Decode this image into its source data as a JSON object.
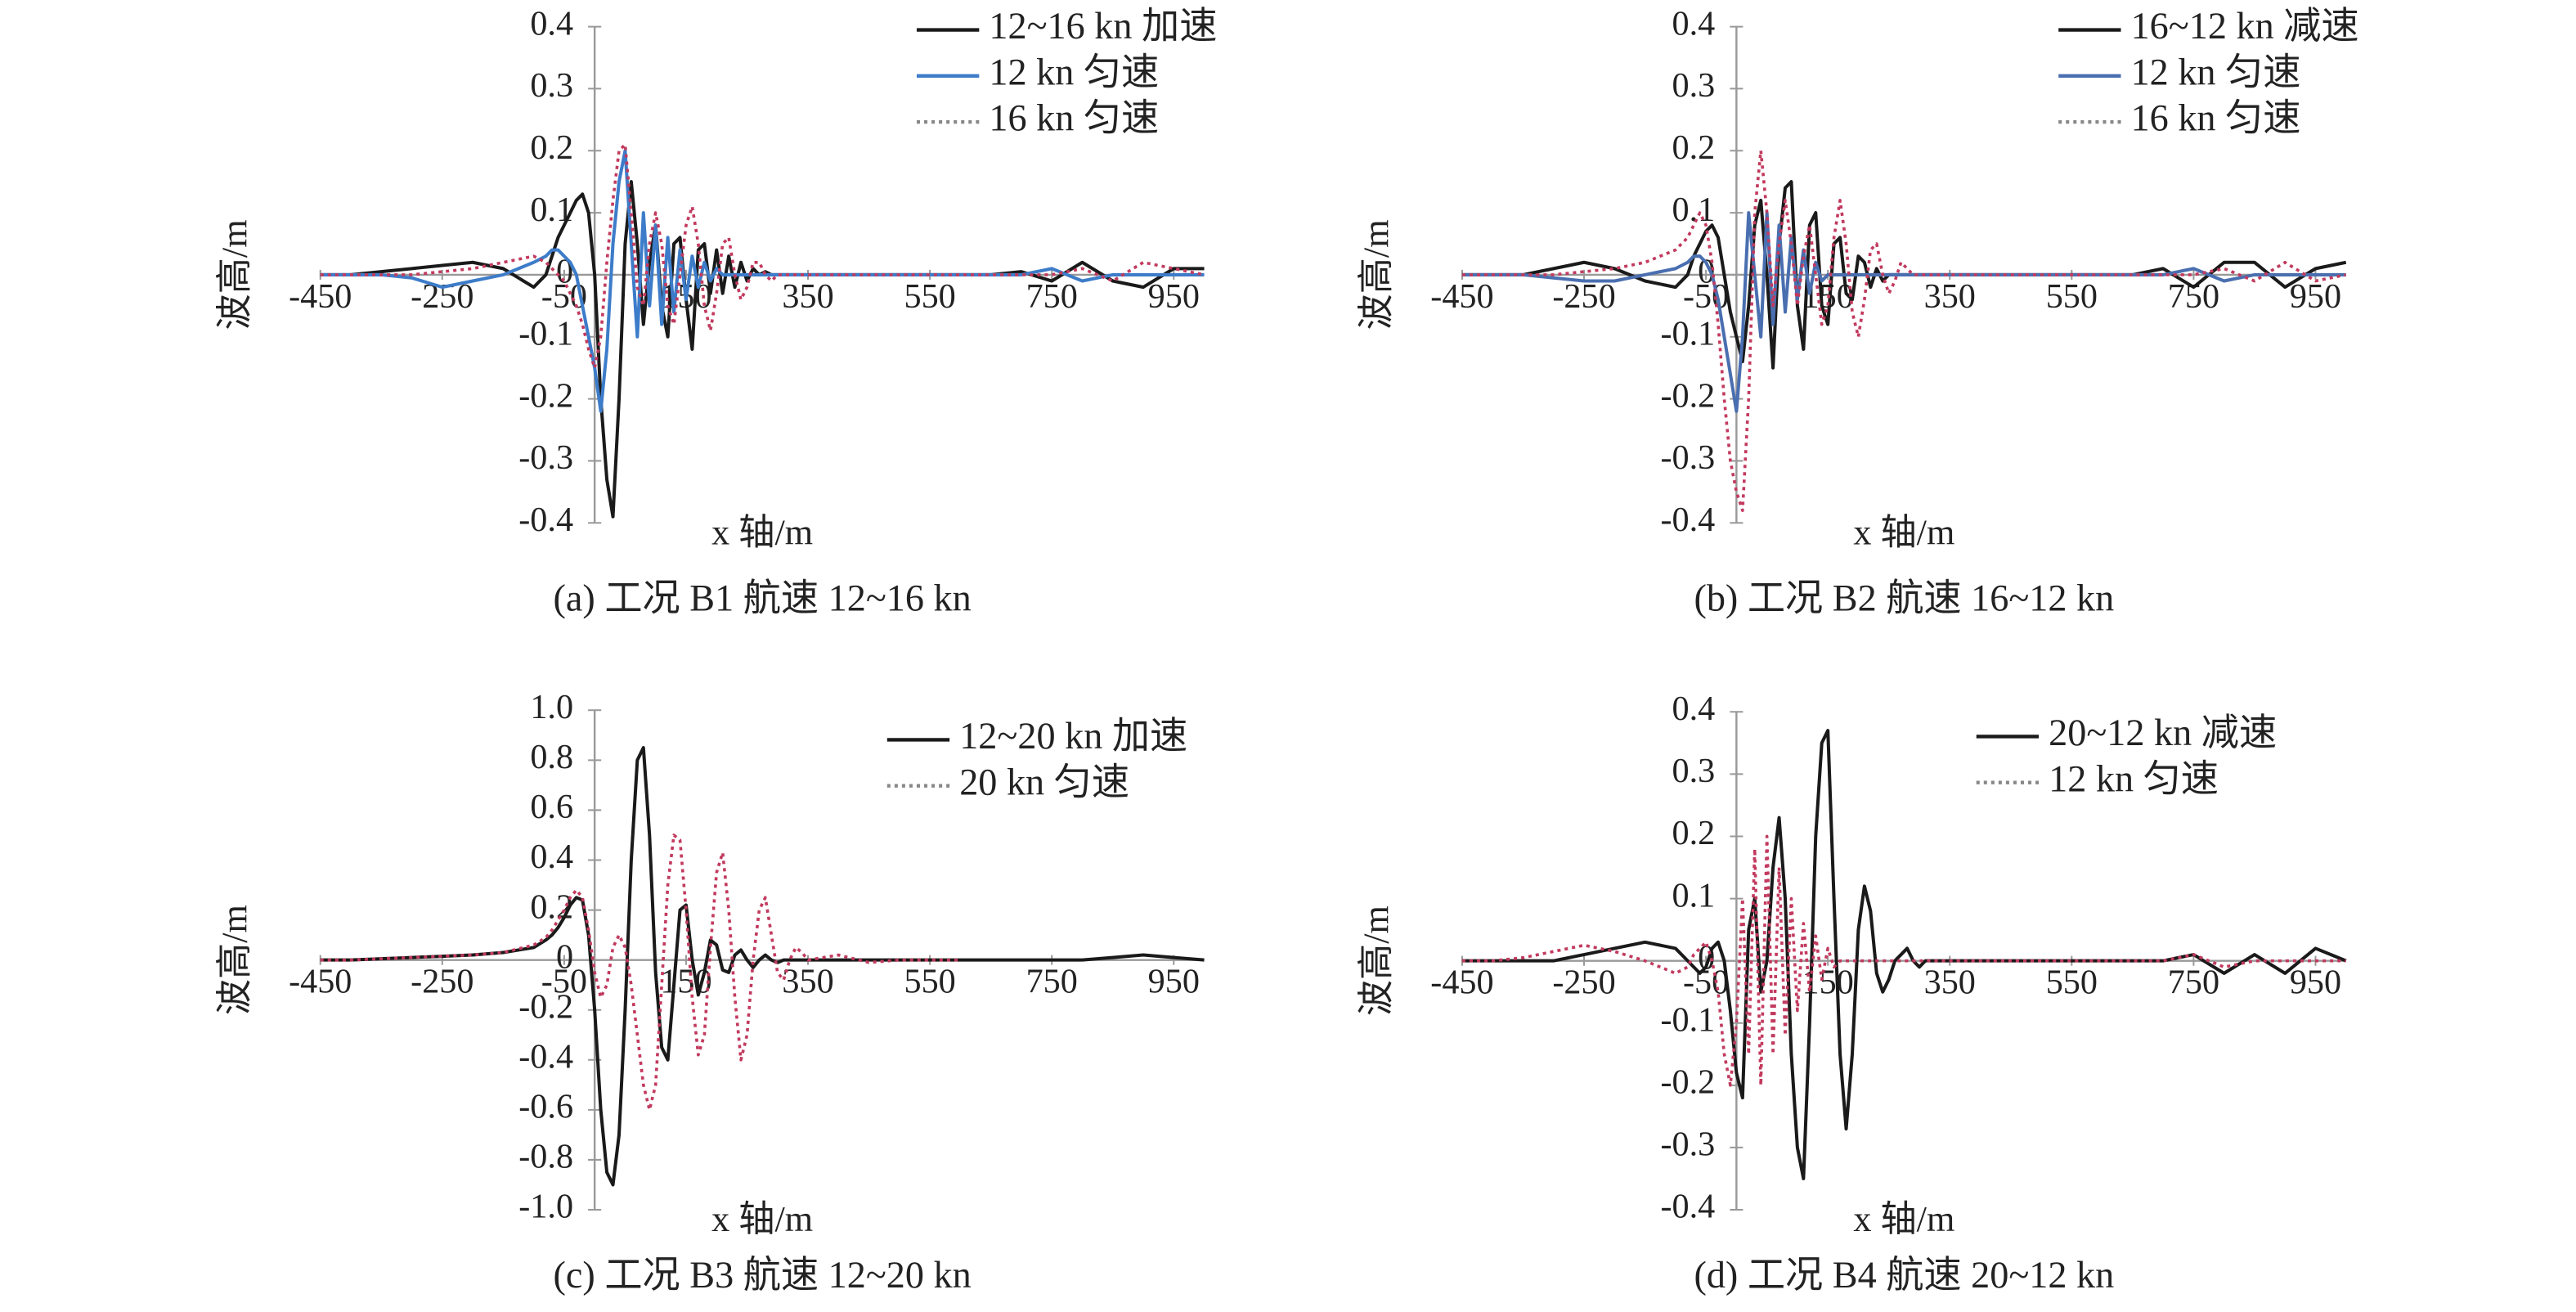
{
  "chart_data": [
    {
      "type": "line",
      "title": "(a) 工况 B1 航速 12~16 kn",
      "xlabel": "x 轴/m",
      "ylabel": "波高/m",
      "legend": "upper right",
      "xlim": [
        -450,
        1000
      ],
      "ylim": [
        -0.4,
        0.4
      ],
      "xticks": [
        -450,
        -250,
        -50,
        150,
        350,
        550,
        750,
        950
      ],
      "yticks": [
        0.4,
        0.3,
        0.2,
        0.1,
        0,
        -0.1,
        -0.2,
        -0.3,
        -0.4
      ],
      "x": [
        -450,
        -400,
        -350,
        -300,
        -250,
        -200,
        -150,
        -100,
        -80,
        -70,
        -60,
        -50,
        -40,
        -30,
        -20,
        -10,
        0,
        10,
        20,
        30,
        40,
        50,
        60,
        70,
        80,
        90,
        100,
        110,
        120,
        130,
        140,
        150,
        160,
        170,
        180,
        190,
        200,
        210,
        220,
        230,
        240,
        250,
        260,
        270,
        280,
        290,
        300,
        310,
        320,
        330,
        340,
        350,
        400,
        450,
        500,
        550,
        600,
        650,
        700,
        750,
        800,
        850,
        900,
        950,
        1000
      ],
      "series": [
        {
          "name": "12~16 kn 加速",
          "color": "#1a1a1a",
          "linestyle": "solid",
          "values": [
            0,
            0,
            0.005,
            0.01,
            0.015,
            0.02,
            0.01,
            -0.02,
            0,
            0.03,
            0.06,
            0.08,
            0.1,
            0.12,
            0.13,
            0.1,
            0,
            -0.2,
            -0.33,
            -0.39,
            -0.2,
            0.05,
            0.15,
            0.05,
            -0.08,
            0.02,
            0.08,
            -0.05,
            -0.1,
            0.05,
            0.06,
            -0.04,
            -0.12,
            0.04,
            0.05,
            -0.03,
            0.04,
            -0.03,
            0.03,
            -0.02,
            0.02,
            -0.01,
            0.01,
            0,
            0.005,
            0,
            0,
            0,
            0,
            0,
            0,
            0,
            0,
            0,
            0,
            0,
            0,
            0,
            0.005,
            -0.01,
            0.02,
            -0.01,
            -0.02,
            0.01,
            0.01
          ]
        },
        {
          "name": "12 kn 匀速",
          "color": "#3d7cc9",
          "linestyle": "solid",
          "values": [
            0,
            0,
            0,
            -0.005,
            -0.02,
            -0.01,
            0,
            0.02,
            0.03,
            0.04,
            0.04,
            0.03,
            0.02,
            0,
            -0.05,
            -0.1,
            -0.15,
            -0.22,
            -0.12,
            0.05,
            0.15,
            0.2,
            0.05,
            -0.1,
            0.1,
            -0.05,
            0.08,
            -0.08,
            0.06,
            -0.06,
            0.04,
            -0.04,
            0.03,
            -0.02,
            0.02,
            -0.01,
            0.01,
            0,
            0,
            0,
            0,
            0,
            0,
            0,
            0,
            0,
            0,
            0,
            0,
            0,
            0,
            0,
            0,
            0,
            0,
            0,
            0,
            0,
            0,
            0.01,
            -0.01,
            0,
            0,
            0,
            0
          ]
        },
        {
          "name": "16 kn 匀速",
          "color": "#c23a5e",
          "linestyle": "dotted",
          "values": [
            0,
            0,
            0,
            0,
            0.005,
            0.01,
            0.02,
            0.03,
            0.02,
            0.01,
            0,
            -0.01,
            -0.03,
            -0.05,
            -0.08,
            -0.12,
            -0.15,
            -0.1,
            0.02,
            0.12,
            0.2,
            0.21,
            0.1,
            -0.02,
            -0.05,
            0.05,
            0.1,
            0.05,
            -0.05,
            -0.08,
            0,
            0.08,
            0.11,
            0.05,
            -0.05,
            -0.09,
            -0.03,
            0.05,
            0.06,
            0,
            -0.04,
            -0.02,
            0.02,
            0.02,
            0,
            -0.01,
            0,
            0,
            0,
            0,
            0,
            0,
            0,
            0,
            0,
            0,
            0,
            0,
            0,
            0,
            0.01,
            -0.01,
            0.02,
            0.01,
            0
          ]
        }
      ]
    },
    {
      "type": "line",
      "title": "(b) 工况 B2 航速 16~12 kn",
      "xlabel": "x 轴/m",
      "ylabel": "波高/m",
      "legend": "upper right",
      "xlim": [
        -450,
        1000
      ],
      "ylim": [
        -0.4,
        0.4
      ],
      "xticks": [
        -450,
        -250,
        -50,
        150,
        350,
        550,
        750,
        950
      ],
      "yticks": [
        0.4,
        0.3,
        0.2,
        0.1,
        0,
        -0.1,
        -0.2,
        -0.3,
        -0.4
      ],
      "x": [
        -450,
        -400,
        -350,
        -300,
        -250,
        -200,
        -150,
        -100,
        -80,
        -70,
        -60,
        -50,
        -40,
        -30,
        -20,
        -10,
        0,
        10,
        20,
        30,
        40,
        50,
        60,
        70,
        80,
        90,
        100,
        110,
        120,
        130,
        140,
        150,
        160,
        170,
        180,
        190,
        200,
        210,
        220,
        230,
        240,
        250,
        260,
        270,
        280,
        290,
        300,
        310,
        320,
        330,
        340,
        350,
        400,
        450,
        500,
        550,
        600,
        650,
        700,
        750,
        800,
        850,
        900,
        950,
        1000
      ],
      "series": [
        {
          "name": "16~12 kn 减速",
          "color": "#1a1a1a",
          "linestyle": "solid",
          "values": [
            0,
            0,
            0,
            0.01,
            0.02,
            0.01,
            -0.01,
            -0.02,
            0,
            0.03,
            0.05,
            0.07,
            0.08,
            0.06,
            0,
            -0.06,
            -0.1,
            -0.14,
            -0.05,
            0.08,
            0.12,
            0,
            -0.15,
            0.05,
            0.14,
            0.15,
            -0.05,
            -0.12,
            0.08,
            0.1,
            -0.05,
            -0.08,
            0.05,
            0.06,
            -0.03,
            -0.04,
            0.03,
            0.02,
            -0.02,
            0.01,
            -0.01,
            0,
            0,
            0,
            0,
            0,
            0,
            0,
            0,
            0,
            0,
            0,
            0,
            0,
            0,
            0,
            0,
            0,
            0.01,
            -0.02,
            0.02,
            0.02,
            -0.02,
            0.01,
            0.02
          ]
        },
        {
          "name": "12 kn 匀速",
          "color": "#4a6fb0",
          "linestyle": "solid",
          "values": [
            0,
            0,
            0,
            -0.005,
            -0.01,
            -0.01,
            0,
            0.01,
            0.02,
            0.03,
            0.03,
            0.02,
            0,
            -0.04,
            -0.1,
            -0.16,
            -0.22,
            -0.1,
            0.1,
            0,
            -0.1,
            0.1,
            -0.08,
            0.08,
            -0.06,
            0.06,
            -0.04,
            0.04,
            -0.03,
            0.02,
            -0.01,
            0,
            0,
            0,
            0,
            0,
            0,
            0,
            0,
            0,
            0,
            0,
            0,
            0,
            0,
            0,
            0,
            0,
            0,
            0,
            0,
            0,
            0,
            0,
            0,
            0,
            0,
            0,
            0,
            0.01,
            -0.01,
            0,
            0,
            0,
            0
          ]
        },
        {
          "name": "16 kn 匀速",
          "color": "#c23a5e",
          "linestyle": "dotted",
          "values": [
            0,
            0,
            0,
            0,
            0.005,
            0.01,
            0.02,
            0.04,
            0.06,
            0.08,
            0.1,
            0.08,
            0.02,
            -0.08,
            -0.2,
            -0.3,
            -0.35,
            -0.38,
            -0.2,
            0.1,
            0.2,
            0.1,
            -0.05,
            0.05,
            0.12,
            0.05,
            -0.05,
            0.03,
            0.08,
            0,
            -0.08,
            -0.05,
            0.06,
            0.12,
            0.05,
            -0.06,
            -0.1,
            -0.04,
            0.04,
            0.05,
            0,
            -0.03,
            -0.01,
            0.02,
            0.01,
            0,
            0,
            0,
            0,
            0,
            0,
            0,
            0,
            0,
            0,
            0,
            0,
            0,
            0,
            0,
            0.01,
            -0.01,
            0.02,
            -0.01,
            0
          ]
        }
      ]
    },
    {
      "type": "line",
      "title": "(c) 工况 B3 航速 12~20 kn",
      "xlabel": "x 轴/m",
      "ylabel": "波高/m",
      "legend": "upper right",
      "xlim": [
        -450,
        1000
      ],
      "ylim": [
        -1,
        1
      ],
      "xticks": [
        -450,
        -250,
        -50,
        150,
        350,
        550,
        750,
        950
      ],
      "yticks": [
        {
          "value": 1,
          "label": "1.0"
        },
        0.8,
        0.6,
        0.4,
        0.2,
        0,
        -0.2,
        -0.4,
        -0.6,
        -0.8,
        {
          "value": -1,
          "label": "-1.0"
        }
      ],
      "x": [
        -450,
        -400,
        -350,
        -300,
        -250,
        -200,
        -150,
        -100,
        -80,
        -70,
        -60,
        -50,
        -40,
        -30,
        -20,
        -10,
        0,
        10,
        20,
        30,
        40,
        50,
        60,
        70,
        80,
        90,
        100,
        110,
        120,
        130,
        140,
        150,
        160,
        170,
        180,
        190,
        200,
        210,
        220,
        230,
        240,
        250,
        260,
        270,
        280,
        290,
        300,
        310,
        320,
        330,
        340,
        350,
        400,
        450,
        500,
        550,
        600,
        650,
        700,
        750,
        800,
        850,
        900,
        950,
        1000
      ],
      "series": [
        {
          "name": "12~20 kn 加速",
          "color": "#1a1a1a",
          "linestyle": "solid",
          "values": [
            0,
            0,
            0.005,
            0.01,
            0.015,
            0.02,
            0.03,
            0.05,
            0.08,
            0.1,
            0.13,
            0.17,
            0.22,
            0.25,
            0.24,
            0.1,
            -0.2,
            -0.6,
            -0.85,
            -0.9,
            -0.7,
            -0.2,
            0.4,
            0.8,
            0.85,
            0.5,
            -0.05,
            -0.35,
            -0.4,
            -0.1,
            0.2,
            0.22,
            0,
            -0.14,
            -0.05,
            0.08,
            0.06,
            -0.04,
            -0.05,
            0.02,
            0.04,
            0,
            -0.03,
            0,
            0.02,
            0,
            -0.01,
            0,
            0,
            0,
            0,
            0,
            0,
            0,
            0,
            0,
            0,
            0,
            0,
            0,
            0,
            0.01,
            0.02,
            0.01,
            0
          ]
        },
        {
          "name": "20 kn 匀速",
          "color": "#c23a5e",
          "linestyle": "dotted",
          "values": [
            0,
            0,
            0.005,
            0.01,
            0.015,
            0.02,
            0.03,
            0.06,
            0.09,
            0.12,
            0.16,
            0.2,
            0.25,
            0.28,
            0.25,
            0.12,
            -0.05,
            -0.15,
            -0.1,
            0.05,
            0.1,
            0.05,
            -0.1,
            -0.3,
            -0.5,
            -0.6,
            -0.5,
            -0.1,
            0.3,
            0.5,
            0.48,
            0.2,
            -0.15,
            -0.38,
            -0.3,
            0.05,
            0.35,
            0.43,
            0.2,
            -0.15,
            -0.4,
            -0.3,
            0,
            0.2,
            0.25,
            0.1,
            -0.05,
            -0.08,
            0,
            0.05,
            0.03,
            0,
            0.02,
            -0.01,
            0,
            0,
            0,
            null,
            null,
            null,
            null,
            null,
            null,
            null,
            null
          ]
        }
      ]
    },
    {
      "type": "line",
      "title": "(d) 工况 B4 航速 20~12 kn",
      "xlabel": "x 轴/m",
      "ylabel": "波高/m",
      "legend": "upper right",
      "xlim": [
        -450,
        1000
      ],
      "ylim": [
        -0.4,
        0.4
      ],
      "xticks": [
        -450,
        -250,
        -50,
        150,
        350,
        550,
        750,
        950
      ],
      "yticks": [
        0.4,
        0.3,
        0.2,
        0.1,
        0,
        -0.1,
        -0.2,
        -0.3,
        -0.4
      ],
      "x": [
        -450,
        -400,
        -350,
        -300,
        -250,
        -200,
        -150,
        -100,
        -80,
        -70,
        -60,
        -50,
        -40,
        -30,
        -20,
        -10,
        0,
        10,
        20,
        30,
        40,
        50,
        60,
        70,
        80,
        90,
        100,
        110,
        120,
        130,
        140,
        150,
        160,
        170,
        180,
        190,
        200,
        210,
        220,
        230,
        240,
        250,
        260,
        270,
        280,
        290,
        300,
        310,
        320,
        330,
        340,
        350,
        400,
        450,
        500,
        550,
        600,
        650,
        700,
        750,
        800,
        850,
        900,
        950,
        1000
      ],
      "series": [
        {
          "name": "20~12 kn 减速",
          "color": "#1a1a1a",
          "linestyle": "solid",
          "values": [
            0,
            0,
            0,
            0,
            0.01,
            0.02,
            0.03,
            0.02,
            0,
            -0.01,
            -0.02,
            -0.01,
            0.02,
            0.03,
            0,
            -0.08,
            -0.18,
            -0.22,
            0.05,
            0.1,
            -0.05,
            0,
            0.15,
            0.23,
            0.1,
            -0.15,
            -0.3,
            -0.35,
            -0.1,
            0.2,
            0.35,
            0.37,
            0.1,
            -0.15,
            -0.27,
            -0.15,
            0.05,
            0.12,
            0.08,
            -0.02,
            -0.05,
            -0.03,
            0,
            0.01,
            0.02,
            0,
            -0.01,
            0,
            0,
            0,
            0,
            0,
            0,
            0,
            0,
            0,
            0,
            0,
            0,
            0.01,
            -0.02,
            0.01,
            -0.02,
            0.02,
            0
          ]
        },
        {
          "name": "12 kn 匀速",
          "color": "#c23a5e",
          "linestyle": "dotted",
          "values": [
            0,
            0,
            0.005,
            0.015,
            0.025,
            0.015,
            0,
            -0.02,
            -0.01,
            0.01,
            0.02,
            0.03,
            0,
            -0.05,
            -0.15,
            -0.2,
            -0.1,
            0.1,
            -0.15,
            0.18,
            -0.2,
            0.2,
            -0.15,
            0.15,
            -0.12,
            0.1,
            -0.08,
            0.06,
            -0.05,
            0.04,
            -0.03,
            0.02,
            -0.01,
            0,
            0,
            0,
            0,
            0,
            0,
            0,
            0,
            0,
            0,
            0,
            0,
            0,
            0,
            0,
            0,
            0,
            0,
            0,
            0,
            0,
            0,
            0,
            0,
            0,
            0,
            0.01,
            -0.01,
            0,
            0,
            0,
            0
          ]
        }
      ]
    }
  ]
}
